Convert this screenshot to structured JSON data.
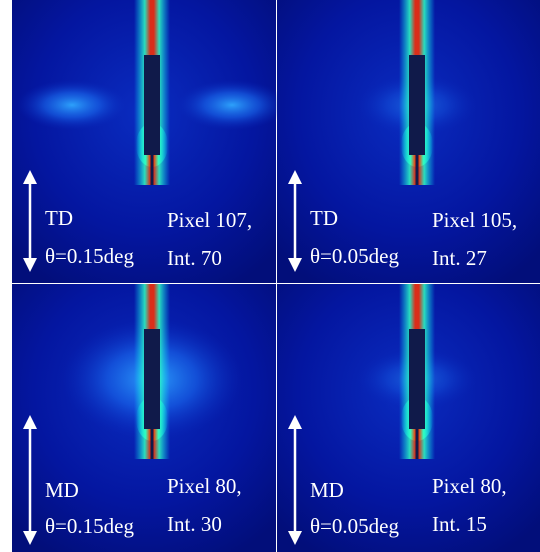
{
  "panels": [
    {
      "direction": "TD",
      "angle": "θ=0.15deg",
      "pixel": "Pixel 107,",
      "intensity": "Int. 70"
    },
    {
      "direction": "TD",
      "angle": "θ=0.05deg",
      "pixel": "Pixel 105,",
      "intensity": "Int. 27"
    },
    {
      "direction": "MD",
      "angle": "θ=0.15deg",
      "pixel": "Pixel 80,",
      "intensity": "Int. 30"
    },
    {
      "direction": "MD",
      "angle": "θ=0.05deg",
      "pixel": "Pixel 80,",
      "intensity": "Int. 15"
    }
  ]
}
